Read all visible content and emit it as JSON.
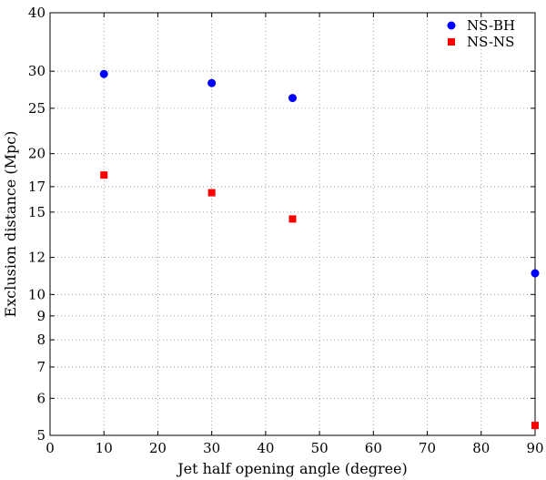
{
  "chart_data": {
    "type": "scatter",
    "title": "",
    "xlabel": "Jet half opening angle (degree)",
    "ylabel": "Exclusion distance (Mpc)",
    "xlim": [
      0,
      90
    ],
    "ylim": [
      5,
      40
    ],
    "yscale": "log",
    "grid": true,
    "legend_position": "top-right",
    "x_ticks": [
      0,
      10,
      20,
      30,
      40,
      50,
      60,
      70,
      80,
      90
    ],
    "y_ticks": [
      5,
      6,
      7,
      8,
      9,
      10,
      12,
      15,
      17,
      20,
      25,
      30,
      40
    ],
    "series": [
      {
        "name": "NS-BH",
        "marker": "circle",
        "color": "#0000ff",
        "x": [
          10,
          30,
          45,
          90
        ],
        "y": [
          29.6,
          28.3,
          26.3,
          11.1
        ]
      },
      {
        "name": "NS-NS",
        "marker": "square",
        "color": "#ff0000",
        "x": [
          10,
          30,
          45,
          90
        ],
        "y": [
          18.0,
          16.5,
          14.5,
          5.25
        ]
      }
    ]
  }
}
